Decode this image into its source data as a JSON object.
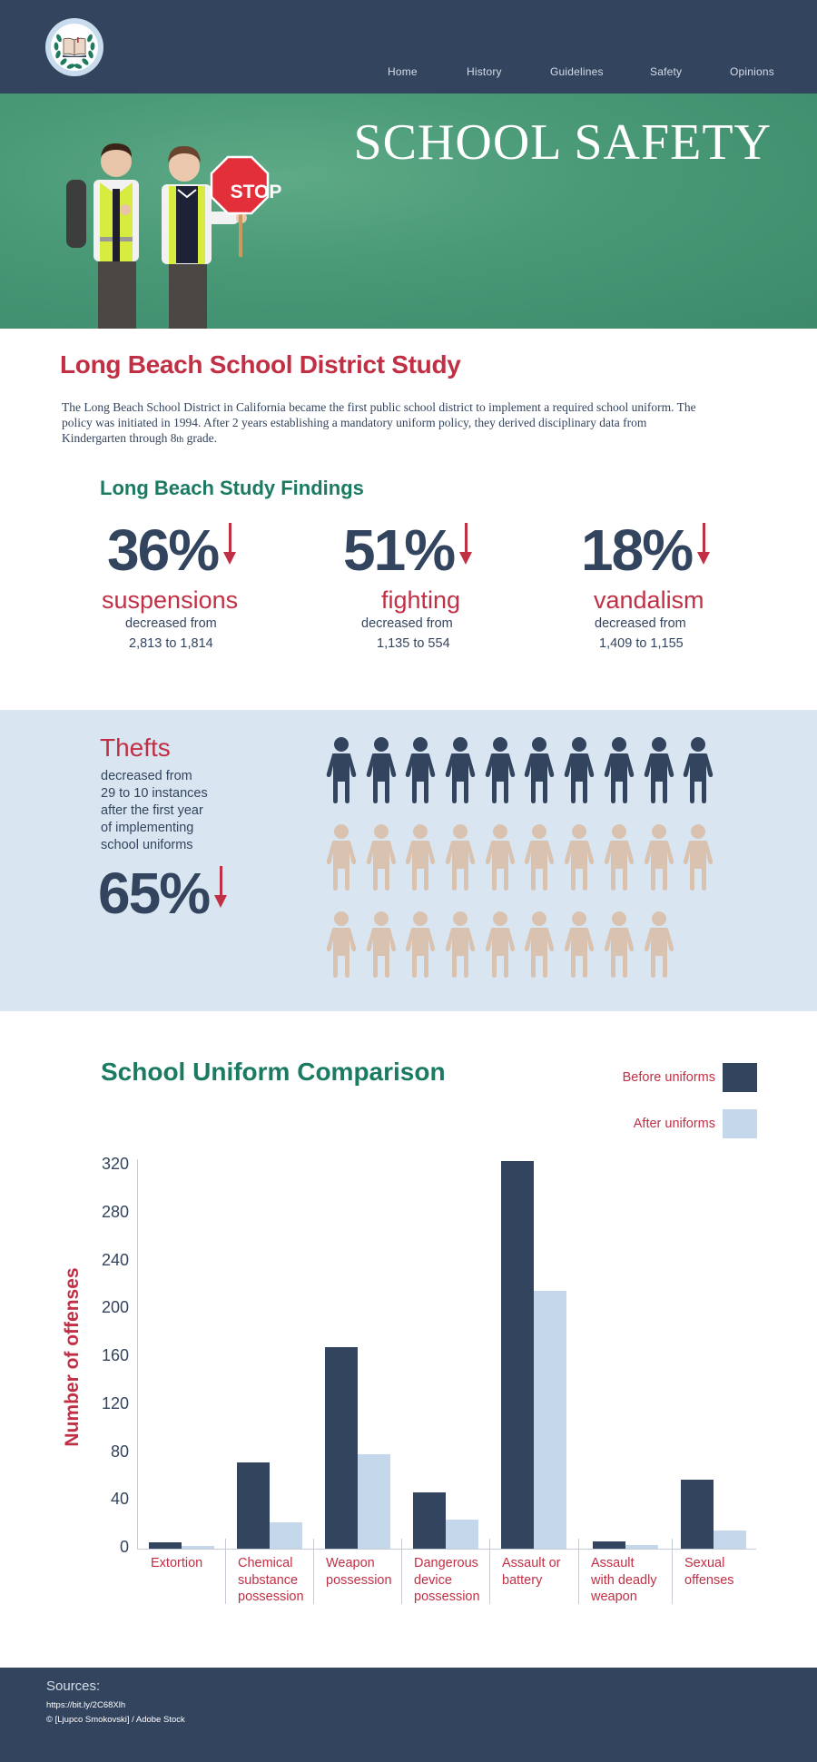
{
  "header": {
    "logo_icon": "laurel-book-icon",
    "nav": [
      "Home",
      "History",
      "Guidelines",
      "Safety",
      "Opinions"
    ]
  },
  "hero": {
    "title": "SCHOOL SAFETY",
    "sign_text": "STOP"
  },
  "study": {
    "title": "Long Beach School District Study",
    "paragraph_main": "The Long Beach School District in California became the first public school district to implement a required school uniform. The policy was initiated in 1994. After 2 years establishing a mandatory uniform policy, they derived disciplinary data from Kindergarten through 8",
    "paragraph_sup": "th",
    "paragraph_end": " grade.",
    "findings_title": "Long Beach Study Findings",
    "stats": [
      {
        "pct": "36%",
        "label": "suspensions",
        "desc1": "decreased from",
        "desc2": "2,813 to 1,814"
      },
      {
        "pct": "51%",
        "label": "fighting",
        "desc1": "decreased from",
        "desc2": "1,135 to 554"
      },
      {
        "pct": "18%",
        "label": "vandalism",
        "desc1": "decreased from",
        "desc2": "1,409 to 1,155"
      }
    ]
  },
  "thefts": {
    "title": "Thefts",
    "desc": [
      "decreased from",
      "29 to 10 instances",
      "after the first year",
      "of implementing",
      "school uniforms"
    ],
    "pct": "65%",
    "people_total": 29,
    "people_highlighted": 10,
    "colors": {
      "highlighted": "#33445e",
      "other": "#d9c3b0"
    }
  },
  "chart": {
    "title": "School Uniform Comparison",
    "legend": [
      {
        "label": "Before uniforms",
        "color": "#33445e"
      },
      {
        "label": "After uniforms",
        "color": "#c5d8eb"
      }
    ],
    "y_axis_title": "Number of offenses",
    "y_ticks": [
      "320",
      "280",
      "240",
      "200",
      "160",
      "120",
      "80",
      "40",
      "0"
    ],
    "categories": [
      [
        "Extortion"
      ],
      [
        "Chemical",
        "substance",
        "possession"
      ],
      [
        "Weapon",
        "possession"
      ],
      [
        "Dangerous",
        "device",
        "possession"
      ],
      [
        "Assault or",
        "battery"
      ],
      [
        "Assault",
        "with deadly",
        "weapon"
      ],
      [
        "Sexual",
        "offenses"
      ]
    ]
  },
  "chart_data": {
    "type": "bar",
    "title": "School Uniform Comparison",
    "xlabel": "",
    "ylabel": "Number of offenses",
    "ylim": [
      0,
      320
    ],
    "yticks": [
      0,
      40,
      80,
      120,
      160,
      200,
      240,
      280,
      320
    ],
    "grid": false,
    "legend_position": "top-right",
    "categories": [
      "Extortion",
      "Chemical substance possession",
      "Weapon possession",
      "Dangerous device possession",
      "Assault or battery",
      "Assault with deadly weapon",
      "Sexual offenses"
    ],
    "series": [
      {
        "name": "Before uniforms",
        "color": "#33445e",
        "values": [
          5,
          72,
          168,
          47,
          324,
          6,
          58
        ]
      },
      {
        "name": "After uniforms",
        "color": "#c5d8eb",
        "values": [
          2,
          22,
          79,
          24,
          215,
          3,
          15
        ]
      }
    ]
  },
  "footer": {
    "sources_title": "Sources:",
    "lines": [
      "https://bit.ly/2C68Xlh",
      "© [Ljupco Smokovski] / Adobe Stock"
    ]
  }
}
